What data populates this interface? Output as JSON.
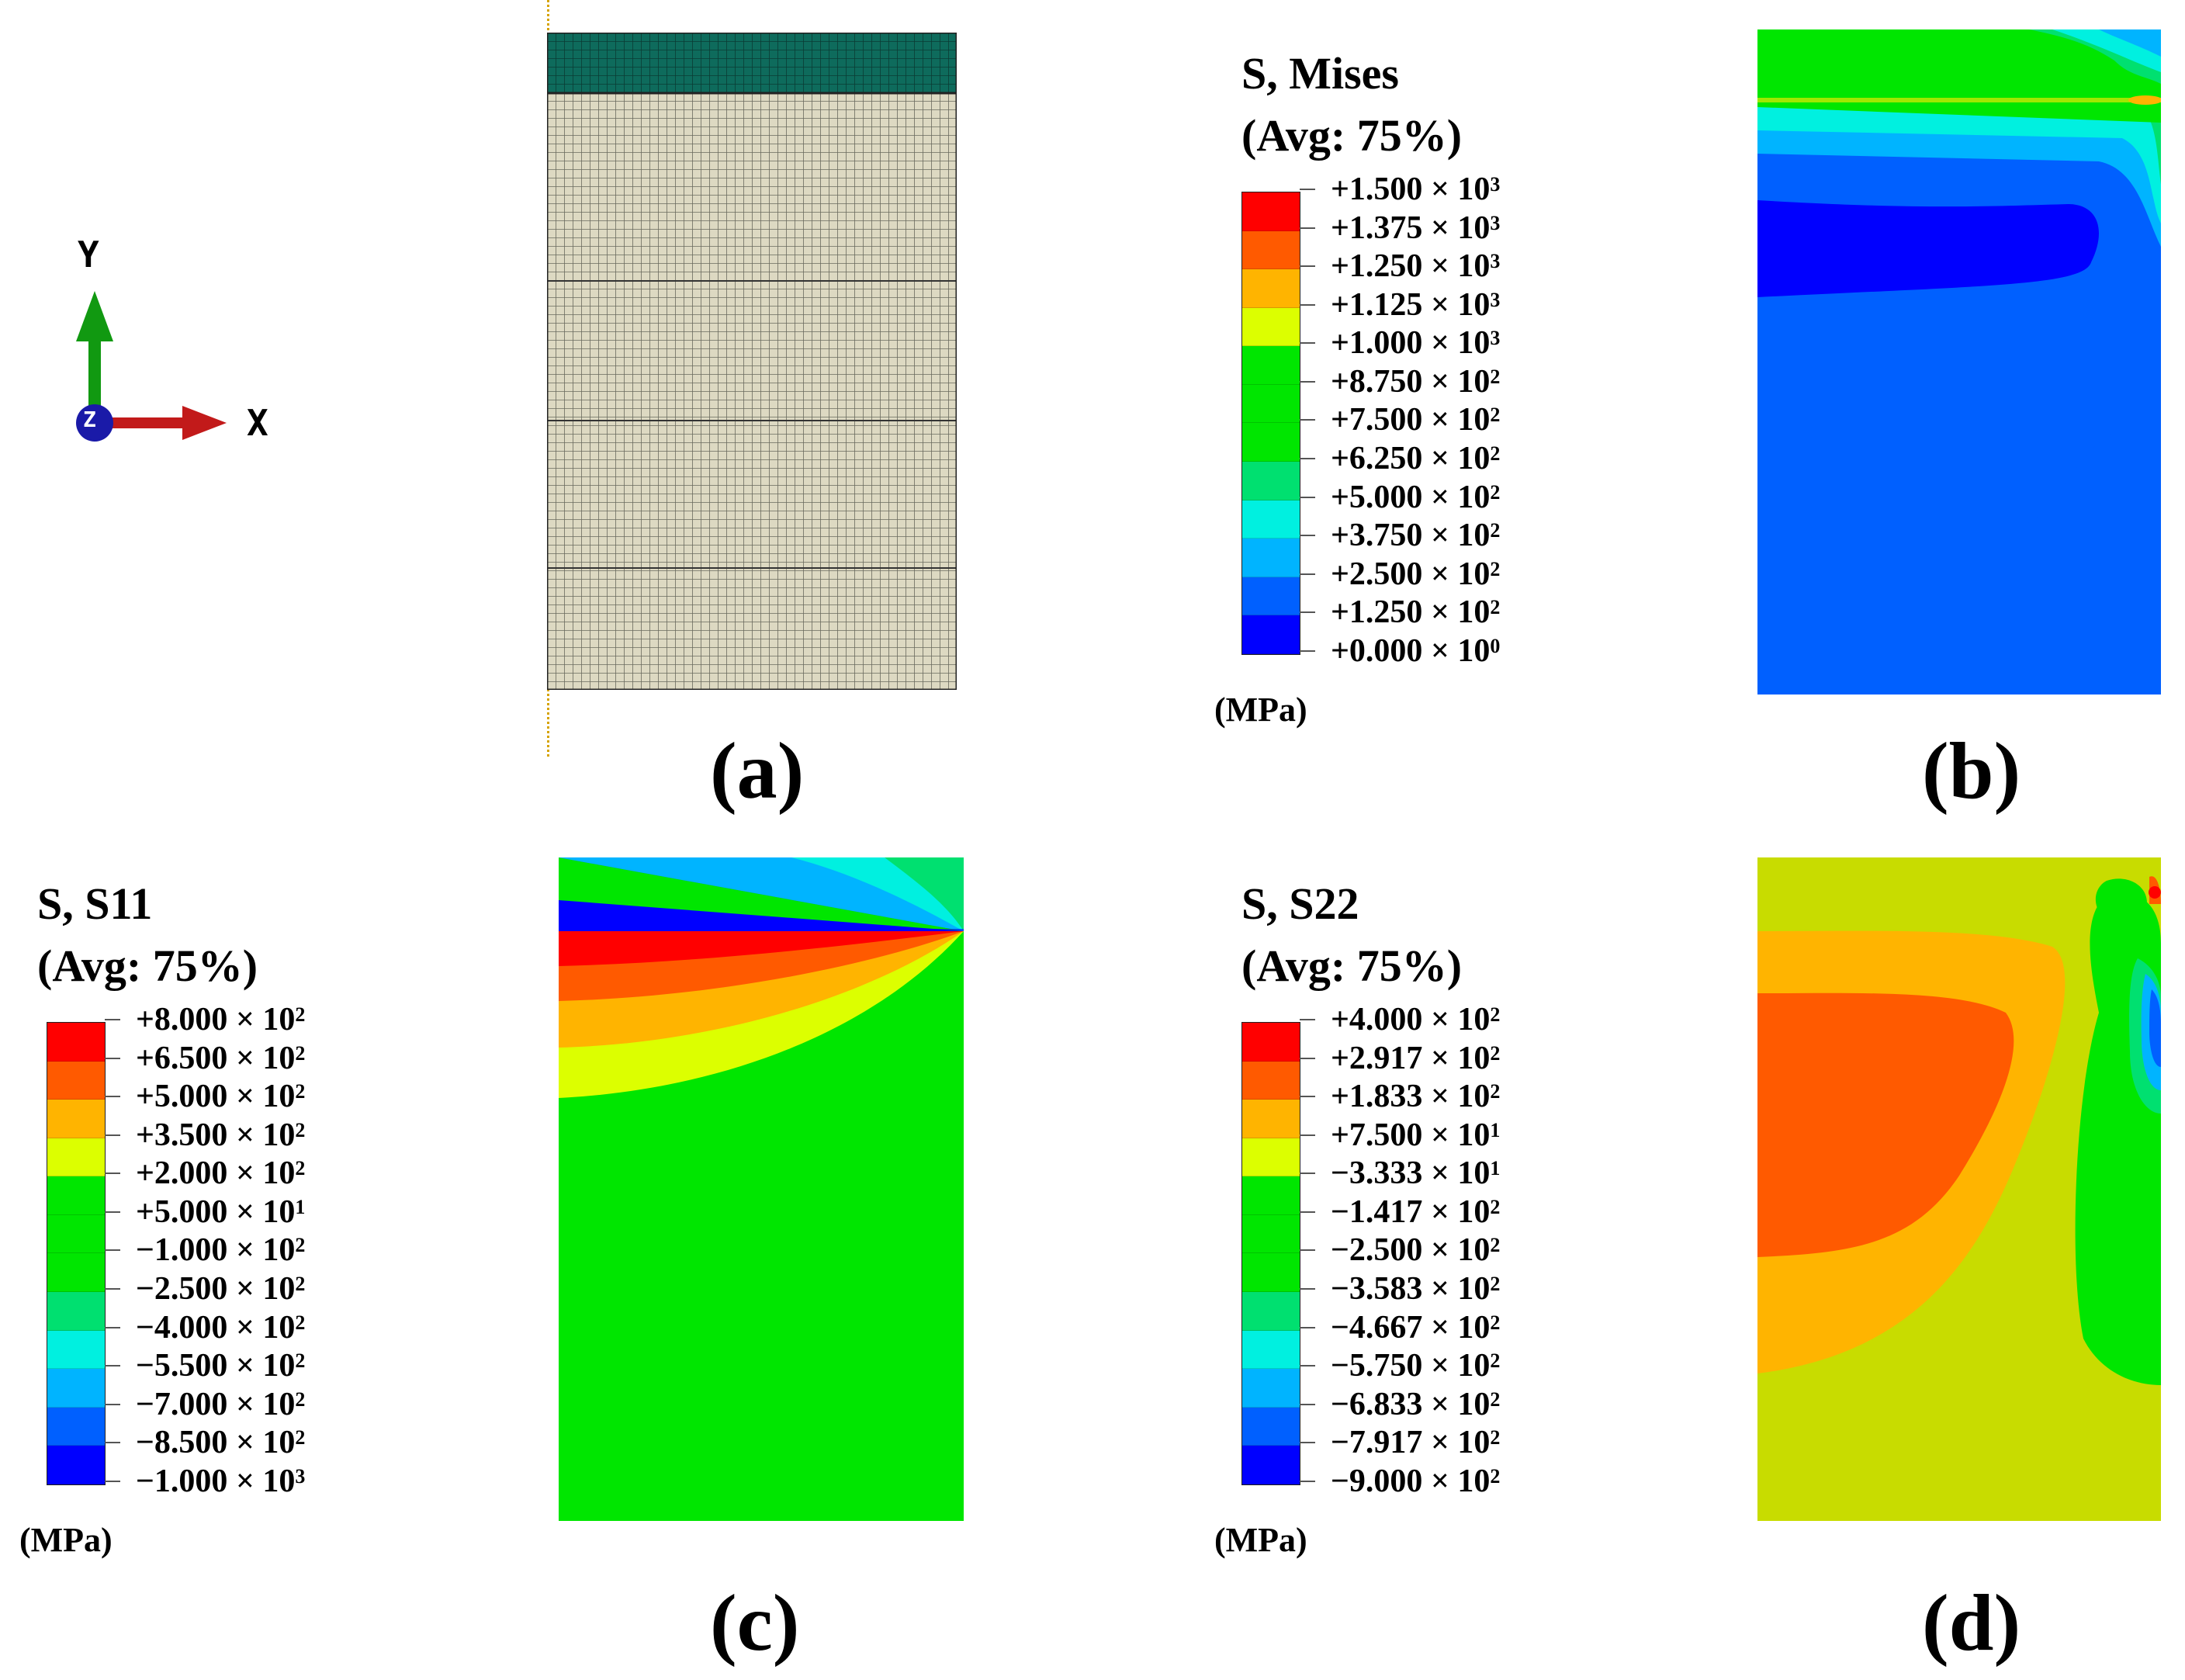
{
  "panels": {
    "a": {
      "label": "(a)"
    },
    "b": {
      "label": "(b)"
    },
    "c": {
      "label": "(c)"
    },
    "d": {
      "label": "(d)"
    }
  },
  "triad": {
    "y": "Y",
    "x": "X",
    "z": "Z"
  },
  "legends": {
    "mises": {
      "title1": "S, Mises",
      "title2": "(Avg: 75%)",
      "unit": "(MPa)",
      "ticks": [
        {
          "m": "+1.500",
          "e": "3"
        },
        {
          "m": "+1.375",
          "e": "3"
        },
        {
          "m": "+1.250",
          "e": "3"
        },
        {
          "m": "+1.125",
          "e": "3"
        },
        {
          "m": "+1.000",
          "e": "3"
        },
        {
          "m": "+8.750",
          "e": "2"
        },
        {
          "m": "+7.500",
          "e": "2"
        },
        {
          "m": "+6.250",
          "e": "2"
        },
        {
          "m": "+5.000",
          "e": "2"
        },
        {
          "m": "+3.750",
          "e": "2"
        },
        {
          "m": "+2.500",
          "e": "2"
        },
        {
          "m": "+1.250",
          "e": "2"
        },
        {
          "m": "+0.000",
          "e": "0"
        }
      ]
    },
    "s11": {
      "title1": "S, S11",
      "title2": "(Avg: 75%)",
      "unit": "(MPa)",
      "ticks": [
        {
          "m": "+8.000",
          "e": "2"
        },
        {
          "m": "+6.500",
          "e": "2"
        },
        {
          "m": "+5.000",
          "e": "2"
        },
        {
          "m": "+3.500",
          "e": "2"
        },
        {
          "m": "+2.000",
          "e": "2"
        },
        {
          "m": "+5.000",
          "e": "1"
        },
        {
          "m": "−1.000",
          "e": "2"
        },
        {
          "m": "−2.500",
          "e": "2"
        },
        {
          "m": "−4.000",
          "e": "2"
        },
        {
          "m": "−5.500",
          "e": "2"
        },
        {
          "m": "−7.000",
          "e": "2"
        },
        {
          "m": "−8.500",
          "e": "2"
        },
        {
          "m": "−1.000",
          "e": "3"
        }
      ]
    },
    "s22": {
      "title1": "S, S22",
      "title2": "(Avg: 75%)",
      "unit": "(MPa)",
      "ticks": [
        {
          "m": "+4.000",
          "e": "2"
        },
        {
          "m": "+2.917",
          "e": "2"
        },
        {
          "m": "+1.833",
          "e": "2"
        },
        {
          "m": "+7.500",
          "e": "1"
        },
        {
          "m": "−3.333",
          "e": "1"
        },
        {
          "m": "−1.417",
          "e": "2"
        },
        {
          "m": "−2.500",
          "e": "2"
        },
        {
          "m": "−3.583",
          "e": "2"
        },
        {
          "m": "−4.667",
          "e": "2"
        },
        {
          "m": "−5.750",
          "e": "2"
        },
        {
          "m": "−6.833",
          "e": "2"
        },
        {
          "m": "−7.917",
          "e": "2"
        },
        {
          "m": "−9.000",
          "e": "2"
        }
      ]
    }
  },
  "colors": {
    "contour_scale": [
      "#ff0000",
      "#ff5a00",
      "#ffb400",
      "#dcff00",
      "#00e600",
      "#00e600",
      "#00e600",
      "#00e070",
      "#00f0e0",
      "#00b4ff",
      "#0060ff",
      "#0000ff"
    ],
    "mesh_top": "#0e6b5c",
    "mesh_body": "#ddd9c2",
    "mesh_line": "#555555"
  }
}
